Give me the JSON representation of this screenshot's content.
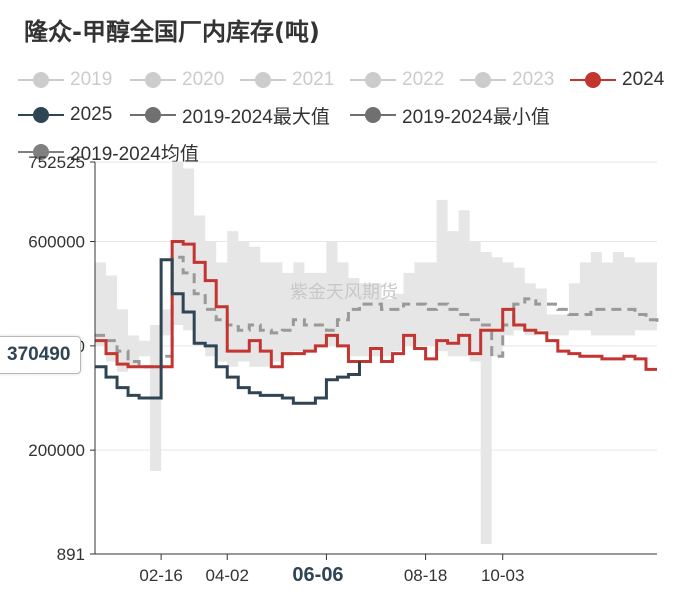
{
  "title": "隆众-甲醇全国厂内库存(吨)",
  "watermark": "紫金天风期货",
  "legend": [
    {
      "label": "2019",
      "color": "#cccccc",
      "active": false
    },
    {
      "label": "2020",
      "color": "#cccccc",
      "active": false
    },
    {
      "label": "2021",
      "color": "#cccccc",
      "active": false
    },
    {
      "label": "2022",
      "color": "#cccccc",
      "active": false
    },
    {
      "label": "2023",
      "color": "#cccccc",
      "active": false
    },
    {
      "label": "2024",
      "color": "#c23531",
      "active": true
    },
    {
      "label": "2025",
      "color": "#2f4554",
      "active": true
    },
    {
      "label": "2019-2024最大值",
      "color": "#707070",
      "active": true
    },
    {
      "label": "2019-2024最小值",
      "color": "#707070",
      "active": true
    },
    {
      "label": "2019-2024均值",
      "color": "#808080",
      "active": true
    }
  ],
  "axis_pointer": {
    "y_value": "370490",
    "x_value": "06-06"
  },
  "chart_data": {
    "type": "line",
    "title": "隆众-甲醇全国厂内库存(吨)",
    "ylim": [
      891,
      752525
    ],
    "y_ticks": [
      "752525",
      "600000",
      "400000",
      "200000",
      "891"
    ],
    "x_ticks": [
      "02-16",
      "04-02",
      "06-06",
      "08-18",
      "10-03"
    ],
    "n_weeks": 52,
    "band": {
      "name": "2019-2024最大值 / 2019-2024最小值",
      "max": [
        560000,
        535000,
        470000,
        420000,
        410000,
        440000,
        470000,
        752525,
        740000,
        650000,
        600000,
        560000,
        620000,
        600000,
        590000,
        560000,
        560000,
        540000,
        560000,
        540000,
        540000,
        600000,
        560000,
        530000,
        520000,
        520000,
        490000,
        500000,
        540000,
        560000,
        560000,
        680000,
        620000,
        660000,
        600000,
        580000,
        570000,
        560000,
        550000,
        520000,
        510000,
        460000,
        460000,
        520000,
        560000,
        580000,
        560000,
        580000,
        570000,
        560000,
        560000,
        570000
      ],
      "min": [
        430000,
        400000,
        370000,
        350000,
        360000,
        380000,
        160000,
        420000,
        440000,
        430000,
        400000,
        380000,
        370000,
        360000,
        370000,
        360000,
        360000,
        370000,
        380000,
        390000,
        390000,
        400000,
        400000,
        400000,
        380000,
        380000,
        380000,
        380000,
        390000,
        400000,
        400000,
        400000,
        390000,
        380000,
        380000,
        370000,
        20000,
        380000,
        420000,
        430000,
        420000,
        430000,
        420000,
        420000,
        430000,
        430000,
        420000,
        420000,
        420000,
        420000,
        430000,
        430000
      ]
    },
    "series": [
      {
        "name": "2019-2024均值",
        "style": "dashed",
        "color": "#999999",
        "values": [
          420000,
          410000,
          390000,
          370000,
          360000,
          360000,
          380000,
          570000,
          540000,
          500000,
          470000,
          450000,
          440000,
          430000,
          440000,
          430000,
          425000,
          430000,
          450000,
          440000,
          440000,
          430000,
          450000,
          470000,
          480000,
          480000,
          470000,
          470000,
          480000,
          480000,
          470000,
          480000,
          470000,
          460000,
          450000,
          440000,
          380000,
          440000,
          480000,
          490000,
          480000,
          480000,
          470000,
          460000,
          460000,
          470000,
          470000,
          470000,
          470000,
          460000,
          450000,
          440000
        ]
      },
      {
        "name": "2024",
        "style": "solid",
        "color": "#c23531",
        "values": [
          410000,
          385000,
          365000,
          360000,
          360000,
          360000,
          360000,
          600000,
          595000,
          560000,
          525000,
          475000,
          390000,
          390000,
          410000,
          390000,
          360000,
          385000,
          385000,
          390000,
          400000,
          420000,
          400000,
          370000,
          370000,
          395000,
          370000,
          385000,
          420000,
          395000,
          375000,
          410000,
          405000,
          420000,
          385000,
          430000,
          430000,
          470000,
          440000,
          430000,
          425000,
          410000,
          390000,
          385000,
          380000,
          380000,
          375000,
          375000,
          380000,
          375000,
          355000,
          355000
        ]
      },
      {
        "name": "2025",
        "style": "solid",
        "color": "#2f4554",
        "values": [
          360000,
          340000,
          320000,
          305000,
          300000,
          300000,
          565000,
          500000,
          465000,
          405000,
          400000,
          360000,
          340000,
          320000,
          310000,
          305000,
          305000,
          300000,
          290000,
          290000,
          300000,
          335000,
          340000,
          345000,
          370490
        ]
      }
    ]
  }
}
